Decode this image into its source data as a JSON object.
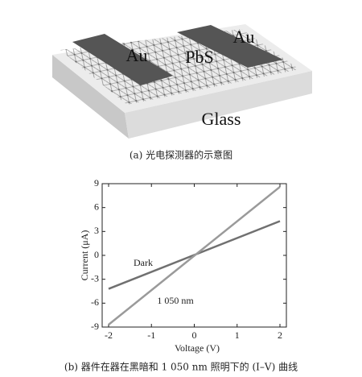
{
  "diagram": {
    "labels": [
      "Au",
      "PbS",
      "Au",
      "Glass"
    ],
    "caption": "(a) 光电探测器的示意图"
  },
  "chart_data": {
    "type": "line",
    "x_label": "Voltage (V)",
    "y_label": "Current (μA)",
    "caption": "(b) 器件在器在黑暗和 1 050 nm 照明下的 (I–V) 曲线",
    "x": [
      -2,
      2
    ],
    "series": [
      {
        "name": "Dark",
        "color": "#707070",
        "values": [
          -4.2,
          4.3
        ]
      },
      {
        "name": "1 050 nm",
        "color": "#9a9a9a",
        "values": [
          -8.7,
          8.6
        ]
      }
    ],
    "xlim": [
      -2.15,
      2.15
    ],
    "xticks": [
      -2,
      -1,
      0,
      1,
      2
    ],
    "ylim": [
      -9,
      9
    ],
    "yticks": [
      -9,
      -6,
      -3,
      0,
      3,
      6,
      9
    ]
  }
}
